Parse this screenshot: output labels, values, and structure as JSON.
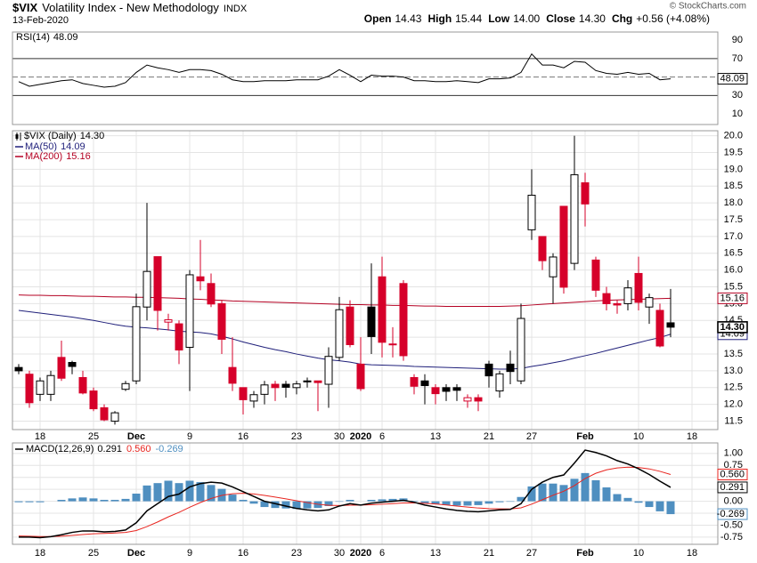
{
  "header": {
    "symbol": "$VIX",
    "name": "Volatility Index - New Methodology",
    "exchange": "INDX",
    "date": "13-Feb-2020",
    "quote": [
      {
        "label": "Open",
        "value": "14.43"
      },
      {
        "label": "High",
        "value": "15.44"
      },
      {
        "label": "Low",
        "value": "14.00"
      },
      {
        "label": "Close",
        "value": "14.30"
      },
      {
        "label": "Chg",
        "value": "+0.56 (+4.08%)"
      }
    ],
    "copyright": "© StockCharts.com"
  },
  "chart_data": [
    {
      "type": "line",
      "title": "RSI(14)",
      "color": "#000000",
      "values": [
        45,
        40,
        42,
        44,
        46,
        47,
        43,
        41,
        39,
        40,
        44,
        55,
        63,
        60,
        58,
        55,
        58,
        58,
        57,
        53,
        47,
        45,
        45,
        46,
        46,
        46,
        47,
        47,
        47,
        51,
        58,
        52,
        45,
        52,
        51,
        51,
        50,
        46,
        46,
        45,
        45,
        46,
        45,
        44,
        48,
        48,
        49,
        55,
        75,
        63,
        63,
        60,
        67,
        66,
        57,
        54,
        53,
        55,
        53,
        54,
        47,
        48.09
      ],
      "ylim": [
        -1.5,
        98.8
      ],
      "yticks": [
        90,
        70,
        50,
        30,
        10
      ],
      "levels": [
        {
          "value": 70,
          "style": "solid"
        },
        {
          "value": 50,
          "style": "dashed"
        },
        {
          "value": 30,
          "style": "solid"
        }
      ]
    },
    {
      "type": "candlestick",
      "title": "$VIX (Daily)",
      "close_label": "14.30",
      "categories": [
        null,
        null,
        "18",
        null,
        null,
        null,
        null,
        "25",
        null,
        null,
        null,
        "Dec",
        null,
        null,
        null,
        null,
        "9",
        null,
        null,
        null,
        null,
        "16",
        null,
        null,
        null,
        null,
        "23",
        null,
        null,
        null,
        "30",
        null,
        "2020",
        null,
        "6",
        null,
        null,
        null,
        null,
        "13",
        null,
        null,
        null,
        null,
        "21",
        null,
        null,
        null,
        "27",
        null,
        null,
        null,
        null,
        "Feb",
        null,
        null,
        null,
        null,
        "10",
        null,
        null,
        null,
        null,
        "18"
      ],
      "open": [
        13.1,
        12.9,
        12.3,
        12.3,
        13.4,
        13.25,
        12.8,
        12.4,
        11.9,
        11.5,
        12.45,
        12.7,
        14.9,
        16.4,
        14.45,
        14.4,
        13.7,
        15.8,
        15.6,
        15.0,
        13.1,
        12.5,
        12.1,
        12.3,
        12.6,
        12.6,
        12.5,
        12.7,
        12.7,
        12.6,
        13.4,
        14.9,
        13.2,
        14.9,
        15.8,
        13.8,
        15.6,
        12.8,
        12.7,
        12.5,
        12.5,
        12.5,
        12.1,
        12.2,
        13.2,
        12.4,
        13.2,
        12.7,
        17.2,
        17.0,
        15.8,
        17.9,
        16.2,
        18.6,
        16.3,
        15.3,
        15.0,
        15.0,
        15.9,
        14.9,
        14.8,
        14.43,
        null,
        null
      ],
      "high": [
        13.2,
        13.0,
        12.8,
        13.0,
        13.9,
        13.3,
        13.0,
        12.5,
        12.0,
        11.8,
        12.7,
        15.3,
        18.0,
        16.4,
        14.7,
        14.5,
        16.0,
        16.9,
        15.9,
        15.1,
        14.0,
        12.5,
        12.4,
        12.7,
        12.7,
        12.7,
        12.7,
        12.8,
        12.7,
        13.7,
        15.2,
        15.1,
        14.0,
        16.2,
        16.4,
        14.3,
        15.7,
        12.9,
        12.9,
        12.6,
        12.6,
        12.6,
        12.3,
        12.3,
        13.3,
        13.0,
        13.6,
        15.0,
        19.0,
        17.0,
        16.5,
        17.9,
        20.0,
        18.9,
        16.4,
        15.5,
        15.1,
        15.7,
        16.4,
        15.3,
        15.0,
        15.44,
        null,
        null
      ],
      "low": [
        12.9,
        11.9,
        12.1,
        12.1,
        12.7,
        12.9,
        12.3,
        11.8,
        11.5,
        11.4,
        12.4,
        12.6,
        14.5,
        14.2,
        14.2,
        13.2,
        12.4,
        15.4,
        14.9,
        13.5,
        12.4,
        11.7,
        11.9,
        12.0,
        12.1,
        12.2,
        12.3,
        12.5,
        11.8,
        11.9,
        13.3,
        13.7,
        12.4,
        13.5,
        13.4,
        13.4,
        13.3,
        12.3,
        12.0,
        12.0,
        12.1,
        12.1,
        11.9,
        11.8,
        12.5,
        12.2,
        12.6,
        12.6,
        16.9,
        16.0,
        15.0,
        15.3,
        16.0,
        17.3,
        15.2,
        14.8,
        14.7,
        14.8,
        14.8,
        14.4,
        13.7,
        14.0,
        null,
        null
      ],
      "close": [
        13.0,
        12.05,
        12.7,
        12.86,
        12.78,
        13.13,
        12.34,
        11.87,
        11.54,
        11.75,
        12.62,
        14.91,
        15.96,
        14.8,
        14.52,
        13.62,
        15.86,
        15.68,
        14.99,
        13.94,
        12.63,
        12.14,
        12.29,
        12.58,
        12.5,
        12.51,
        12.61,
        12.67,
        12.65,
        13.43,
        14.82,
        13.78,
        12.47,
        14.02,
        13.85,
        13.79,
        13.45,
        12.54,
        12.56,
        12.32,
        12.39,
        12.42,
        12.2,
        12.1,
        12.85,
        12.91,
        12.98,
        14.56,
        18.23,
        16.28,
        16.39,
        15.49,
        18.84,
        17.97,
        15.4,
        15.0,
        14.96,
        15.47,
        15.04,
        15.18,
        13.74,
        14.3,
        null,
        null
      ],
      "colors": {
        "up": "#000000",
        "down": "#d6002a",
        "hollow": "#ffffff"
      },
      "series": [
        {
          "name": "MA(50)",
          "color": "#1f1f7a",
          "values": [
            14.8,
            14.76,
            14.72,
            14.68,
            14.64,
            14.6,
            14.55,
            14.5,
            14.44,
            14.38,
            14.33,
            14.3,
            14.28,
            14.25,
            14.22,
            14.18,
            14.16,
            14.14,
            14.1,
            14.03,
            13.95,
            13.86,
            13.78,
            13.7,
            13.63,
            13.57,
            13.5,
            13.44,
            13.38,
            13.33,
            13.3,
            13.26,
            13.2,
            13.18,
            13.17,
            13.16,
            13.15,
            13.13,
            13.12,
            13.11,
            13.1,
            13.09,
            13.08,
            13.07,
            13.06,
            13.05,
            13.05,
            13.07,
            13.13,
            13.18,
            13.24,
            13.3,
            13.38,
            13.45,
            13.52,
            13.6,
            13.68,
            13.76,
            13.84,
            13.92,
            13.99,
            14.09,
            null,
            null
          ]
        },
        {
          "name": "MA(200)",
          "color": "#b40022",
          "values": [
            15.26,
            15.25,
            15.25,
            15.24,
            15.24,
            15.23,
            15.22,
            15.22,
            15.21,
            15.2,
            15.2,
            15.19,
            15.19,
            15.18,
            15.17,
            15.16,
            15.14,
            15.13,
            15.11,
            15.1,
            15.08,
            15.07,
            15.06,
            15.05,
            15.04,
            15.03,
            15.02,
            15.01,
            15.0,
            14.99,
            14.98,
            14.97,
            14.97,
            14.96,
            14.96,
            14.95,
            14.95,
            14.94,
            14.93,
            14.93,
            14.92,
            14.92,
            14.92,
            14.92,
            14.92,
            14.92,
            14.93,
            14.94,
            14.96,
            14.98,
            15.0,
            15.02,
            15.04,
            15.06,
            15.08,
            15.1,
            15.11,
            15.12,
            15.13,
            15.14,
            15.15,
            15.16,
            null,
            null
          ]
        }
      ],
      "ylim": [
        11.25,
        20.15
      ],
      "yticks": [
        11.5,
        {
          "value": 12,
          "label": "12.0"
        },
        12.5,
        {
          "value": 13,
          "label": "13.0"
        },
        13.5,
        {
          "value": 14,
          "label": "14.0"
        },
        14.5,
        {
          "value": 15,
          "label": "15.0"
        },
        15.5,
        {
          "value": 16,
          "label": "16.0"
        },
        16.5,
        {
          "value": 17,
          "label": "17.0"
        },
        17.5,
        {
          "value": 18,
          "label": "18.0"
        },
        18.5,
        {
          "value": 19,
          "label": "19.0"
        },
        19.5,
        {
          "value": 20,
          "label": "20.0"
        }
      ],
      "grid": true
    },
    {
      "type": "macd",
      "title": "MACD(12,26,9)",
      "categories": [
        null,
        null,
        "18",
        null,
        null,
        null,
        null,
        "25",
        null,
        null,
        null,
        "Dec",
        null,
        null,
        null,
        null,
        "9",
        null,
        null,
        null,
        null,
        "16",
        null,
        null,
        null,
        null,
        "23",
        null,
        null,
        null,
        "30",
        null,
        "2020",
        null,
        "6",
        null,
        null,
        null,
        null,
        "13",
        null,
        null,
        null,
        null,
        "21",
        null,
        null,
        null,
        "27",
        null,
        null,
        null,
        null,
        "Feb",
        null,
        null,
        null,
        null,
        "10",
        null,
        null,
        null,
        null,
        "18"
      ],
      "macd": {
        "color": "#000000",
        "values": [
          -0.75,
          -0.75,
          -0.76,
          -0.74,
          -0.7,
          -0.65,
          -0.62,
          -0.62,
          -0.64,
          -0.63,
          -0.6,
          -0.45,
          -0.2,
          -0.05,
          0.1,
          0.15,
          0.3,
          0.37,
          0.4,
          0.38,
          0.3,
          0.2,
          0.1,
          0.0,
          -0.05,
          -0.1,
          -0.15,
          -0.18,
          -0.2,
          -0.18,
          -0.1,
          -0.05,
          -0.08,
          -0.04,
          -0.02,
          0.0,
          0.02,
          -0.02,
          -0.08,
          -0.12,
          -0.16,
          -0.19,
          -0.21,
          -0.22,
          -0.2,
          -0.18,
          -0.17,
          -0.05,
          0.25,
          0.4,
          0.5,
          0.55,
          0.8,
          1.07,
          1.02,
          0.95,
          0.85,
          0.78,
          0.68,
          0.56,
          0.42,
          0.291,
          null,
          null
        ]
      },
      "signal": {
        "color": "#e8251f",
        "last_label": "0.560",
        "values": [
          -0.726,
          -0.731,
          -0.737,
          -0.738,
          -0.73,
          -0.714,
          -0.695,
          -0.68,
          -0.672,
          -0.664,
          -0.651,
          -0.611,
          -0.529,
          -0.433,
          -0.326,
          -0.231,
          -0.125,
          -0.026,
          0.059,
          0.123,
          0.158,
          0.167,
          0.153,
          0.123,
          0.088,
          0.051,
          0.011,
          -0.027,
          -0.062,
          -0.085,
          -0.088,
          -0.081,
          -0.08,
          -0.072,
          -0.062,
          -0.049,
          -0.035,
          -0.032,
          -0.042,
          -0.057,
          -0.077,
          -0.1,
          -0.122,
          -0.141,
          -0.153,
          -0.158,
          -0.16,
          -0.138,
          -0.06,
          0.032,
          0.126,
          0.21,
          0.328,
          0.476,
          0.585,
          0.658,
          0.697,
          0.713,
          0.706,
          0.677,
          0.626,
          0.56,
          null,
          null
        ]
      },
      "histogram": {
        "color": "#4f8fc0",
        "values": [
          -0.02,
          -0.02,
          -0.02,
          0.0,
          0.03,
          0.06,
          0.08,
          0.06,
          0.03,
          0.03,
          0.05,
          0.16,
          0.33,
          0.38,
          0.43,
          0.38,
          0.43,
          0.4,
          0.34,
          0.26,
          0.14,
          0.03,
          -0.05,
          -0.12,
          -0.14,
          -0.15,
          -0.16,
          -0.15,
          -0.14,
          -0.1,
          -0.01,
          0.03,
          0.0,
          0.03,
          0.04,
          0.05,
          0.06,
          0.01,
          -0.04,
          -0.06,
          -0.08,
          -0.09,
          -0.09,
          -0.08,
          -0.05,
          -0.02,
          -0.01,
          0.09,
          0.31,
          0.37,
          0.37,
          0.34,
          0.47,
          0.59,
          0.44,
          0.29,
          0.15,
          0.07,
          -0.03,
          -0.12,
          -0.21,
          -0.269,
          null,
          null
        ]
      },
      "ylim": [
        -0.9,
        1.22
      ],
      "yticks": [
        {
          "value": 1,
          "label": "1.00"
        },
        0.75,
        {
          "value": 0.5,
          "label": "0.50"
        },
        0.25,
        {
          "value": 0,
          "label": "0.00"
        },
        -0.25,
        {
          "value": -0.5,
          "label": "-0.50"
        },
        -0.75
      ],
      "grid": true
    }
  ]
}
